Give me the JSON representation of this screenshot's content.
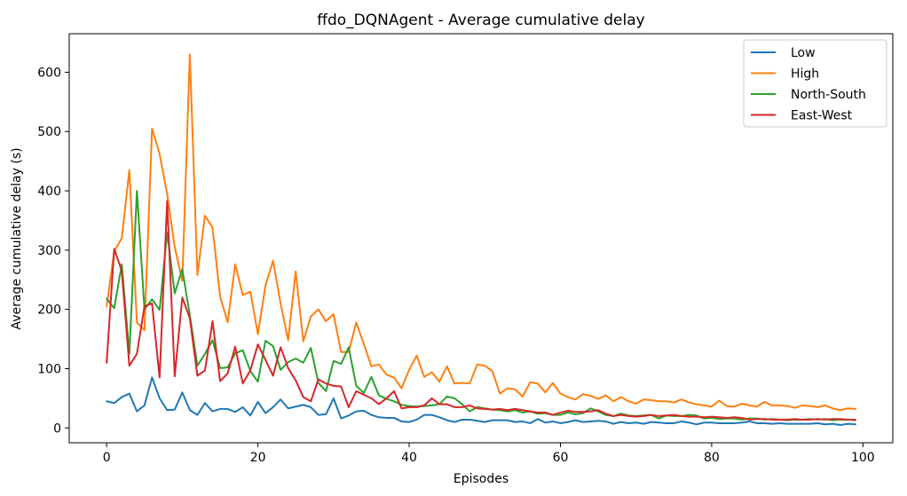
{
  "chart_data": {
    "type": "line",
    "title": "ffdo_DQNAgent - Average cumulative delay",
    "xlabel": "Episodes",
    "ylabel": "Average cumulative delay (s)",
    "xlim": [
      -4.95,
      103.95
    ],
    "ylim": [
      -25,
      665
    ],
    "xticks": [
      0,
      20,
      40,
      60,
      80,
      100
    ],
    "yticks": [
      0,
      100,
      200,
      300,
      400,
      500,
      600
    ],
    "grid": false,
    "legend_position": "top-right",
    "series": [
      {
        "name": "Low",
        "color": "#1f77b4",
        "values": [
          45,
          42,
          52,
          58,
          28,
          38,
          85,
          50,
          30,
          31,
          60,
          30,
          22,
          42,
          28,
          32,
          32,
          27,
          35,
          21,
          44,
          25,
          35,
          48,
          33,
          36,
          39,
          35,
          22,
          23,
          50,
          16,
          21,
          28,
          29,
          22,
          18,
          17,
          17,
          11,
          10,
          14,
          22,
          22,
          18,
          13,
          10,
          14,
          14,
          12,
          10,
          13,
          13,
          13,
          10,
          11,
          8,
          15,
          9,
          11,
          8,
          10,
          13,
          10,
          11,
          12,
          11,
          7,
          10,
          8,
          9,
          7,
          10,
          9,
          8,
          8,
          11,
          9,
          6,
          9,
          9,
          8,
          8,
          8,
          9,
          11,
          8,
          8,
          7,
          8,
          7,
          7,
          7,
          7,
          8,
          6,
          7,
          5,
          7,
          6
        ]
      },
      {
        "name": "High",
        "color": "#ff7f0e",
        "values": [
          205,
          298,
          320,
          435,
          178,
          165,
          505,
          462,
          395,
          305,
          248,
          630,
          258,
          358,
          338,
          222,
          178,
          276,
          224,
          230,
          158,
          240,
          282,
          210,
          148,
          264,
          146,
          188,
          200,
          180,
          192,
          128,
          128,
          178,
          142,
          104,
          107,
          90,
          85,
          67,
          98,
          122,
          86,
          94,
          78,
          104,
          75,
          76,
          75,
          107,
          105,
          96,
          58,
          67,
          65,
          53,
          77,
          75,
          60,
          76,
          58,
          52,
          48,
          57,
          54,
          49,
          55,
          45,
          52,
          45,
          41,
          48,
          47,
          45,
          45,
          43,
          48,
          43,
          40,
          38,
          36,
          46,
          37,
          36,
          41,
          38,
          36,
          44,
          38,
          38,
          37,
          34,
          38,
          37,
          35,
          38,
          33,
          30,
          33,
          32
        ]
      },
      {
        "name": "North-South",
        "color": "#2ca02c",
        "values": [
          218,
          202,
          276,
          125,
          400,
          200,
          217,
          199,
          330,
          227,
          268,
          190,
          105,
          125,
          148,
          101,
          102,
          126,
          131,
          96,
          78,
          147,
          138,
          98,
          111,
          117,
          110,
          135,
          76,
          62,
          113,
          108,
          136,
          71,
          59,
          86,
          55,
          49,
          45,
          39,
          37,
          36,
          37,
          38,
          40,
          53,
          50,
          40,
          28,
          35,
          33,
          31,
          30,
          28,
          30,
          26,
          28,
          24,
          25,
          22,
          22,
          26,
          23,
          25,
          33,
          28,
          22,
          20,
          24,
          21,
          20,
          21,
          22,
          16,
          21,
          20,
          20,
          22,
          21,
          16,
          17,
          15,
          16,
          16,
          14,
          16,
          16,
          14,
          15,
          14,
          13,
          14,
          14,
          15,
          14,
          15,
          13,
          14,
          14,
          13
        ]
      },
      {
        "name": "East-West",
        "color": "#d62728",
        "values": [
          110,
          302,
          265,
          105,
          125,
          205,
          210,
          85,
          383,
          87,
          220,
          185,
          88,
          97,
          180,
          79,
          92,
          137,
          75,
          97,
          141,
          115,
          88,
          136,
          101,
          80,
          52,
          45,
          82,
          75,
          71,
          70,
          35,
          62,
          56,
          50,
          40,
          50,
          62,
          33,
          35,
          35,
          38,
          50,
          40,
          40,
          35,
          35,
          38,
          33,
          32,
          31,
          32,
          30,
          32,
          30,
          28,
          26,
          26,
          22,
          26,
          29,
          27,
          27,
          28,
          30,
          24,
          20,
          22,
          20,
          19,
          20,
          22,
          20,
          21,
          22,
          20,
          19,
          19,
          18,
          19,
          18,
          17,
          18,
          17,
          14,
          15,
          15,
          14,
          14,
          14,
          15,
          14,
          14,
          15,
          14,
          15,
          15,
          14,
          14
        ]
      }
    ]
  }
}
